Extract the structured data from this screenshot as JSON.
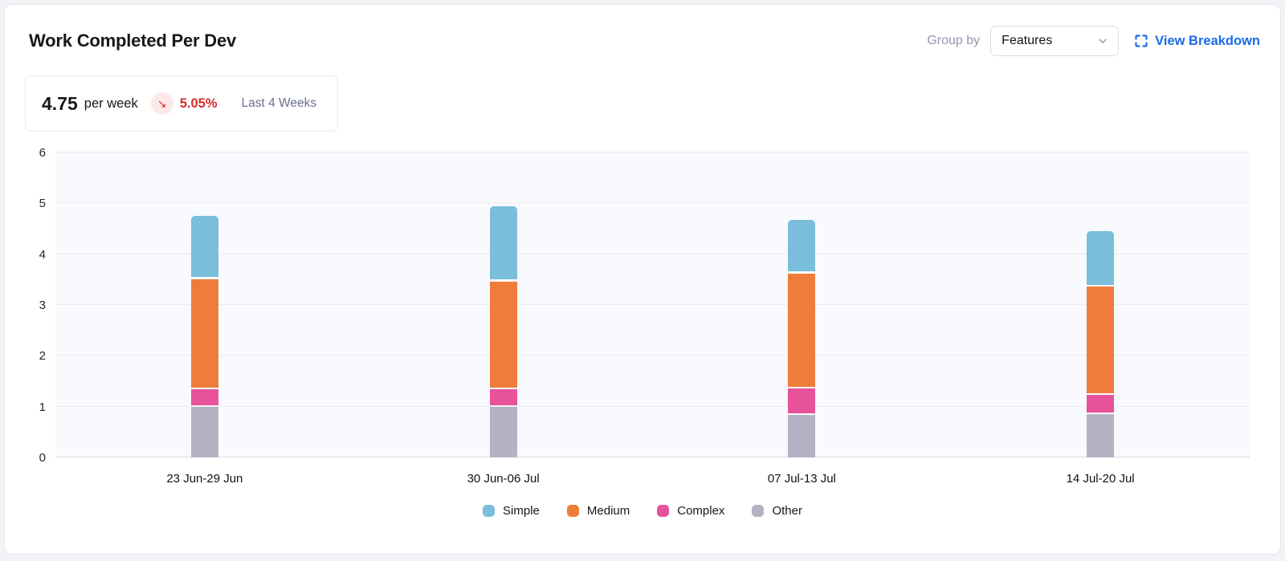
{
  "header": {
    "title": "Work Completed Per Dev",
    "group_by_label": "Group by",
    "group_by_value": "Features",
    "view_breakdown_label": "View Breakdown",
    "link_color": "#1a6be8"
  },
  "summary": {
    "value": "4.75",
    "unit": "per week",
    "delta": "5.05%",
    "delta_direction": "down",
    "delta_arrow": "↘",
    "delta_color": "#d92b2b",
    "period": "Last 4 Weeks"
  },
  "chart_data": {
    "type": "bar",
    "stacked": true,
    "title": "Work Completed Per Dev",
    "categories": [
      "23 Jun-29 Jun",
      "30 Jun-06 Jul",
      "07 Jul-13 Jul",
      "14 Jul-20 Jul"
    ],
    "series": [
      {
        "name": "Simple",
        "color": "#7abedb",
        "values": [
          1.2,
          1.45,
          1.01,
          1.05
        ]
      },
      {
        "name": "Medium",
        "color": "#ee7d3b",
        "values": [
          2.17,
          2.12,
          2.27,
          2.13
        ]
      },
      {
        "name": "Complex",
        "color": "#e8529b",
        "values": [
          0.35,
          0.35,
          0.52,
          0.38
        ]
      },
      {
        "name": "Other",
        "color": "#b5b2c4",
        "values": [
          1.03,
          1.03,
          0.87,
          0.89
        ]
      }
    ],
    "stack_order_bottom_to_top": [
      "Other",
      "Complex",
      "Medium",
      "Simple"
    ],
    "totals": [
      4.75,
      4.95,
      4.67,
      4.45
    ],
    "xlabel": "",
    "ylabel": "",
    "ylim": [
      0,
      6
    ],
    "yticks": [
      0,
      1,
      2,
      3,
      4,
      5,
      6
    ],
    "grid": true,
    "plot_background": "#f8fafd",
    "legend_position": "bottom"
  }
}
